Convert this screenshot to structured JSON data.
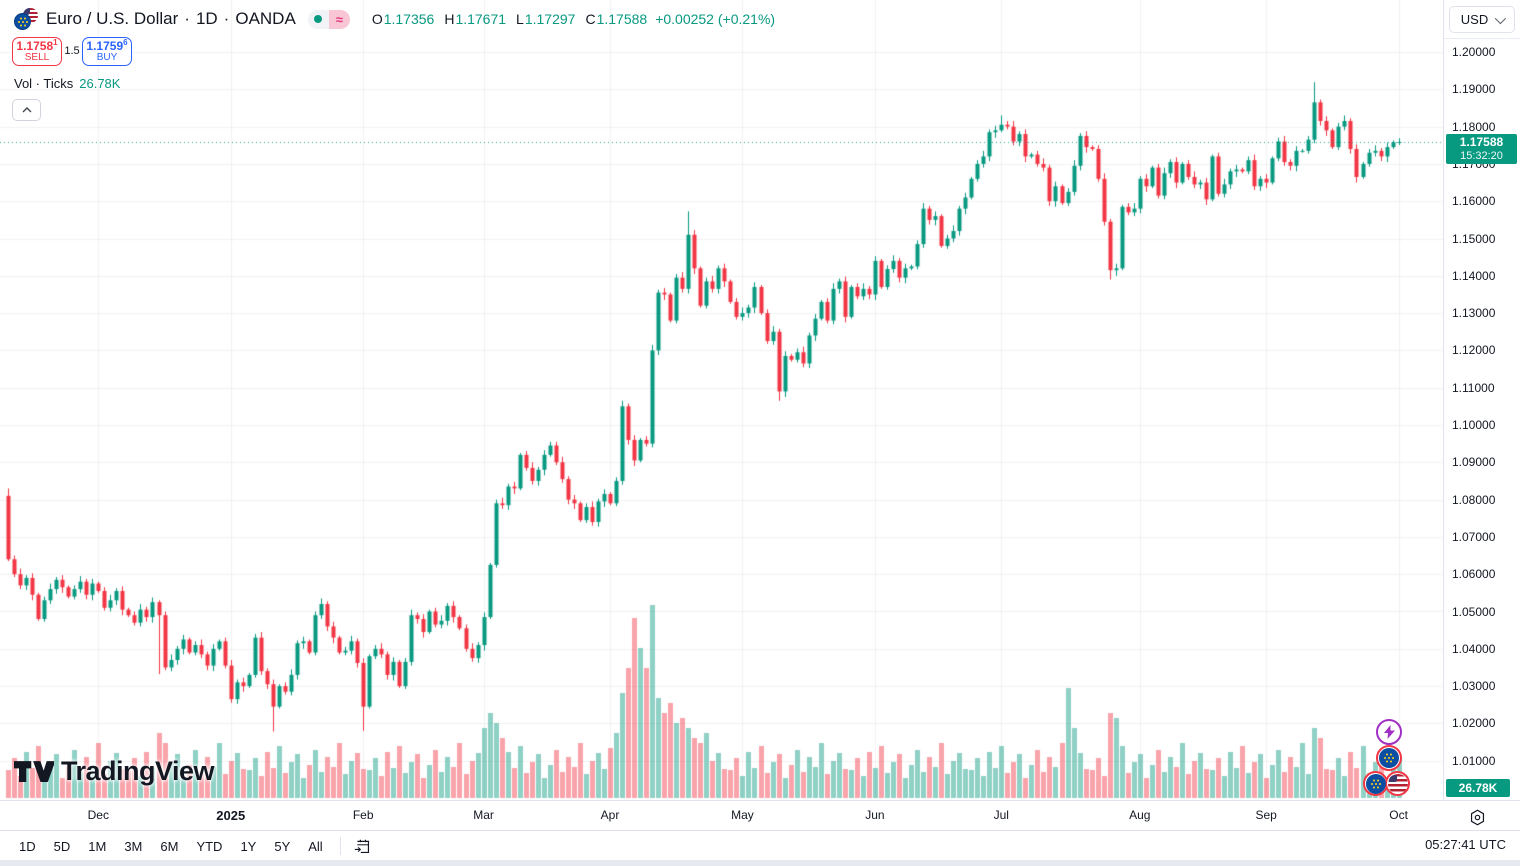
{
  "colors": {
    "up": "#089981",
    "down": "#F23645",
    "vol_up": "rgba(8,153,129,0.45)",
    "vol_down": "rgba(242,54,69,0.45)",
    "grid": "rgba(19,23,34,0.055)",
    "accent_blue": "#2962FF",
    "axis_text": "#131722",
    "badge_green": "#089981"
  },
  "header": {
    "name": "Euro / U.S. Dollar",
    "dot": "·",
    "interval": "1D",
    "exchange": "OANDA",
    "status_approx": "≈"
  },
  "ohlc": {
    "o_key": "O",
    "o": "1.17356",
    "h_key": "H",
    "h": "1.17671",
    "l_key": "L",
    "l": "1.17297",
    "c_key": "C",
    "c": "1.17588",
    "change": "+0.00252 (+0.21%)"
  },
  "trade": {
    "sell_price": "1.1758",
    "sell_sup": "1",
    "sell_label": "SELL",
    "spread": "1.5",
    "buy_price": "1.1759",
    "buy_sup": "6",
    "buy_label": "BUY"
  },
  "vol_legend": {
    "label": "Vol · Ticks",
    "value": "26.78K"
  },
  "watermark": {
    "text": "TradingView"
  },
  "axis": {
    "currency": "USD",
    "price_badge": {
      "price": "1.17588",
      "countdown": "15:32:20"
    },
    "volume_badge": "26.78K"
  },
  "toolbar": {
    "ranges": [
      "1D",
      "5D",
      "1M",
      "3M",
      "6M",
      "YTD",
      "1Y",
      "5Y",
      "All"
    ],
    "clock": "05:27:41 UTC"
  },
  "chart_data": {
    "type": "candlestick",
    "symbol": "Euro / U.S. Dollar",
    "ticker": "EURUSD",
    "exchange": "OANDA",
    "timeframe": "1D",
    "last_price": 1.17588,
    "y_axis": {
      "min": 1.01,
      "max": 1.2,
      "ticks": [
        "1.20000",
        "1.19000",
        "1.18000",
        "1.17000",
        "1.16000",
        "1.15000",
        "1.14000",
        "1.13000",
        "1.12000",
        "1.11000",
        "1.10000",
        "1.09000",
        "1.08000",
        "1.07000",
        "1.06000",
        "1.05000",
        "1.04000",
        "1.03000",
        "1.02000",
        "1.01000"
      ]
    },
    "x_axis": {
      "months": [
        {
          "label": "Dec",
          "index": 15
        },
        {
          "label": "2025",
          "index": 37,
          "emphasis": true
        },
        {
          "label": "Feb",
          "index": 59
        },
        {
          "label": "Mar",
          "index": 79
        },
        {
          "label": "Apr",
          "index": 100
        },
        {
          "label": "May",
          "index": 122
        },
        {
          "label": "Jun",
          "index": 144
        },
        {
          "label": "Jul",
          "index": 165
        },
        {
          "label": "Aug",
          "index": 188
        },
        {
          "label": "Sep",
          "index": 209
        },
        {
          "label": "Oct",
          "index": 231
        }
      ]
    },
    "first_open": 1.081,
    "closes": [
      1.064,
      1.06,
      1.057,
      1.059,
      1.0545,
      1.048,
      1.053,
      1.056,
      1.0585,
      1.0565,
      1.054,
      1.056,
      1.058,
      1.0545,
      1.0575,
      1.0555,
      1.051,
      1.053,
      1.0555,
      1.0505,
      1.049,
      1.047,
      1.0505,
      1.0485,
      1.0525,
      1.049,
      1.035,
      1.037,
      1.04,
      1.0425,
      1.039,
      1.041,
      1.0385,
      1.0355,
      1.04,
      1.042,
      1.0355,
      1.0265,
      1.031,
      1.03,
      1.033,
      1.043,
      1.034,
      1.0305,
      1.0245,
      1.03,
      1.0285,
      1.033,
      1.0415,
      1.042,
      1.039,
      1.049,
      1.052,
      1.046,
      1.043,
      1.039,
      1.0395,
      1.042,
      1.0362,
      1.0245,
      1.038,
      1.04,
      1.0385,
      1.033,
      1.0365,
      1.03,
      1.0365,
      1.049,
      1.048,
      1.0445,
      1.05,
      1.0465,
      1.0475,
      1.0515,
      1.0485,
      1.0455,
      1.04,
      1.0375,
      1.041,
      1.0485,
      1.0625,
      1.079,
      1.0785,
      1.0835,
      1.083,
      1.092,
      1.0885,
      1.085,
      1.088,
      1.092,
      1.0945,
      1.09,
      1.0855,
      1.08,
      1.079,
      1.0745,
      1.078,
      1.074,
      1.0795,
      1.0815,
      1.079,
      1.085,
      1.105,
      1.096,
      1.0905,
      1.096,
      1.095,
      1.12,
      1.1355,
      1.135,
      1.128,
      1.1395,
      1.1365,
      1.151,
      1.142,
      1.132,
      1.1385,
      1.1365,
      1.142,
      1.1385,
      1.133,
      1.129,
      1.13,
      1.1315,
      1.137,
      1.13,
      1.1225,
      1.125,
      1.109,
      1.1185,
      1.1175,
      1.1195,
      1.1165,
      1.124,
      1.1285,
      1.133,
      1.128,
      1.1365,
      1.1385,
      1.129,
      1.137,
      1.1345,
      1.1365,
      1.135,
      1.144,
      1.137,
      1.1418,
      1.144,
      1.1395,
      1.142,
      1.1425,
      1.1485,
      1.158,
      1.155,
      1.156,
      1.148,
      1.15,
      1.152,
      1.158,
      1.161,
      1.166,
      1.17,
      1.172,
      1.1785,
      1.179,
      1.1805,
      1.18,
      1.176,
      1.178,
      1.172,
      1.1725,
      1.17,
      1.169,
      1.16,
      1.164,
      1.1595,
      1.1625,
      1.1695,
      1.1775,
      1.1745,
      1.174,
      1.166,
      1.1545,
      1.1415,
      1.142,
      1.1585,
      1.157,
      1.158,
      1.166,
      1.164,
      1.169,
      1.1615,
      1.1675,
      1.1705,
      1.165,
      1.17,
      1.1665,
      1.1645,
      1.165,
      1.1605,
      1.172,
      1.162,
      1.1645,
      1.168,
      1.1685,
      1.168,
      1.171,
      1.164,
      1.166,
      1.165,
      1.1715,
      1.176,
      1.1705,
      1.1695,
      1.1735,
      1.1735,
      1.1765,
      1.1865,
      1.1815,
      1.179,
      1.1745,
      1.18,
      1.1815,
      1.174,
      1.1665,
      1.17,
      1.173,
      1.1735,
      1.172,
      1.1745,
      1.1758,
      1.17588
    ],
    "high_overrides": {
      "0": 1.083,
      "90": 1.0955,
      "113": 1.1573,
      "165": 1.183,
      "217": 1.1919
    },
    "low_overrides": {
      "25": 1.0332,
      "44": 1.0178,
      "59": 1.018,
      "128": 1.1065,
      "183": 1.139
    },
    "volumes": [
      28,
      40,
      22,
      46,
      30,
      52,
      25,
      36,
      44,
      20,
      33,
      48,
      26,
      41,
      31,
      55,
      24,
      37,
      45,
      29,
      28,
      40,
      22,
      46,
      30,
      65,
      55,
      36,
      44,
      20,
      33,
      48,
      26,
      41,
      31,
      55,
      24,
      37,
      45,
      29,
      28,
      40,
      22,
      46,
      30,
      52,
      25,
      36,
      44,
      20,
      33,
      48,
      26,
      41,
      31,
      55,
      24,
      37,
      45,
      29,
      28,
      40,
      22,
      46,
      30,
      52,
      25,
      36,
      44,
      20,
      33,
      48,
      26,
      41,
      31,
      55,
      24,
      37,
      45,
      70,
      85,
      75,
      60,
      46,
      30,
      52,
      25,
      36,
      44,
      20,
      33,
      48,
      26,
      41,
      31,
      55,
      24,
      37,
      45,
      29,
      50,
      65,
      105,
      130,
      180,
      150,
      130,
      193,
      100,
      85,
      95,
      75,
      80,
      70,
      60,
      55,
      65,
      37,
      45,
      29,
      28,
      40,
      22,
      46,
      30,
      52,
      25,
      36,
      44,
      20,
      33,
      48,
      26,
      41,
      31,
      55,
      24,
      37,
      45,
      29,
      28,
      40,
      22,
      46,
      30,
      52,
      25,
      36,
      44,
      20,
      33,
      48,
      26,
      41,
      31,
      55,
      24,
      37,
      45,
      29,
      28,
      40,
      22,
      46,
      30,
      52,
      25,
      36,
      44,
      20,
      33,
      48,
      26,
      41,
      31,
      55,
      110,
      70,
      45,
      29,
      28,
      40,
      22,
      85,
      80,
      52,
      25,
      36,
      44,
      20,
      33,
      48,
      26,
      41,
      31,
      55,
      24,
      37,
      45,
      29,
      28,
      40,
      22,
      46,
      30,
      52,
      25,
      36,
      44,
      20,
      33,
      48,
      26,
      41,
      31,
      55,
      24,
      70,
      60,
      29,
      28,
      40,
      22,
      46,
      30,
      52,
      25,
      36,
      44,
      20,
      33,
      40
    ]
  }
}
